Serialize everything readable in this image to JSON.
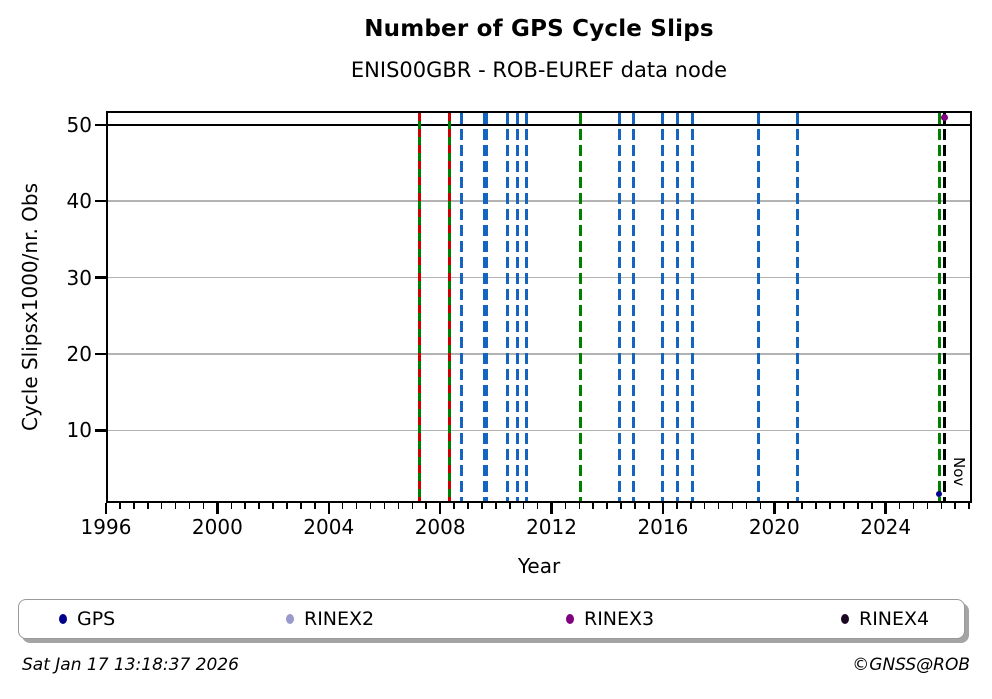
{
  "header": {
    "title": "Number of GPS Cycle Slips",
    "subtitle": "ENIS00GBR - ROB-EUREF data node"
  },
  "footer": {
    "timestamp": "Sat Jan 17 13:18:37 2026",
    "copyright": "©GNSS@ROB"
  },
  "chart_data": {
    "type": "scatter",
    "title": "Number of GPS Cycle Slips",
    "subtitle": "ENIS00GBR - ROB-EUREF data node",
    "xlabel": "Year",
    "ylabel": "Cycle Slipsx1000/nr. Obs",
    "xlim": [
      1996,
      2027.1
    ],
    "ylim": [
      0.5,
      51.8
    ],
    "x_major_ticks": [
      1996,
      2000,
      2004,
      2008,
      2012,
      2016,
      2020,
      2024
    ],
    "x_minor_tick_step_years": 0.5,
    "y_ticks": [
      10,
      20,
      30,
      40,
      50
    ],
    "grid": "horizontal-only",
    "threshold_line": {
      "y": 50,
      "color": "#000000",
      "style": "solid"
    },
    "annotation": {
      "text": "Nov",
      "x": 2026.4,
      "y_anchor": "bottom",
      "rotation_deg": 90
    },
    "event_lines": [
      {
        "x": 2007.27,
        "color": "green-red",
        "style": "green solid with red dashes"
      },
      {
        "x": 2008.34,
        "color": "green-red",
        "style": "green solid with red dashes"
      },
      {
        "x": 2008.77,
        "color": "blue",
        "style": "dashed"
      },
      {
        "x": 2009.62,
        "color": "blue",
        "style": "dashed",
        "weight": "thick"
      },
      {
        "x": 2010.42,
        "color": "blue",
        "style": "dashed"
      },
      {
        "x": 2010.76,
        "color": "blue",
        "style": "dashed"
      },
      {
        "x": 2011.09,
        "color": "blue",
        "style": "dashed"
      },
      {
        "x": 2013.04,
        "color": "green",
        "style": "dashed"
      },
      {
        "x": 2014.43,
        "color": "blue",
        "style": "dashed"
      },
      {
        "x": 2014.93,
        "color": "blue",
        "style": "dashed"
      },
      {
        "x": 2015.98,
        "color": "blue",
        "style": "dashed"
      },
      {
        "x": 2016.54,
        "color": "blue",
        "style": "dashed"
      },
      {
        "x": 2017.06,
        "color": "blue",
        "style": "dashed"
      },
      {
        "x": 2019.43,
        "color": "blue",
        "style": "dashed"
      },
      {
        "x": 2020.83,
        "color": "blue",
        "style": "dashed"
      },
      {
        "x": 2025.92,
        "color": "green",
        "style": "dashed"
      },
      {
        "x": 2026.12,
        "color": "black",
        "style": "dashed"
      }
    ],
    "points": [
      {
        "series": "RINEX3",
        "x": 2026.1,
        "y": 51.0,
        "color": "#800080"
      },
      {
        "series": "GPS",
        "x": 2025.9,
        "y": 1.7,
        "color": "#00008b"
      }
    ],
    "legend": {
      "position": "bottom",
      "entries": [
        {
          "label": "GPS",
          "color": "#00008b"
        },
        {
          "label": "RINEX2",
          "color": "#9999cc"
        },
        {
          "label": "RINEX3",
          "color": "#800080"
        },
        {
          "label": "RINEX4",
          "color": "#1c0722"
        }
      ]
    },
    "colors": {
      "blue_line": "#1565c0",
      "green_line": "#008000",
      "red_dash": "#cc0000",
      "black_line": "#000000",
      "grid_gray": "#b3b3b3"
    }
  }
}
